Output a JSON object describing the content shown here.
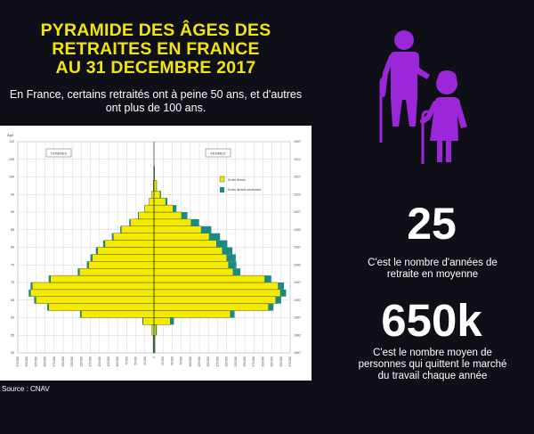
{
  "header": {
    "title_lines": [
      "PYRAMIDE DES ÂGES DES",
      "RETRAITES EN FRANCE",
      "AU 31 DECEMBRE 2017"
    ],
    "subtitle": "En France, certains retraités ont à peine 50 ans, et d'autres ont plus de 100 ans."
  },
  "stats": [
    {
      "value": "25",
      "description": "C'est le nombre d'années de retraite en moyenne"
    },
    {
      "value": "650k",
      "description": "C'est le nombre moyen de personnes qui quittent le marché du travail chaque année"
    }
  ],
  "source": "Source : CNAV",
  "icons": {
    "illustration": "elderly-couple-icon",
    "color": "#9b27d9"
  },
  "chart_data": {
    "type": "bar",
    "orientation": "horizontal-pyramid",
    "ylabel": "Âge",
    "panel_labels": {
      "left": "HOMMES",
      "right": "FEMMES"
    },
    "legend": {
      "placement": "top-right",
      "entries": [
        "Droits directs",
        "Droits dérivés seulement"
      ]
    },
    "colors": {
      "direct": "#f4ec00",
      "derived": "#1c8a84",
      "outline": "#222222"
    },
    "age_ticks": [
      50,
      55,
      60,
      65,
      70,
      75,
      80,
      85,
      90,
      95,
      100,
      105,
      110
    ],
    "year_ticks": [
      1907,
      1912,
      1917,
      1922,
      1927,
      1932,
      1937,
      1942,
      1947,
      1952,
      1957,
      1962,
      1967
    ],
    "x_tick_labels": [
      "375 000",
      "350 000",
      "325 000",
      "300 000",
      "275 000",
      "250 000",
      "225 000",
      "200 000",
      "175 000",
      "150 000",
      "125 000",
      "100 000",
      "75 000",
      "50 000",
      "25 000",
      "0",
      "25 000",
      "50 000",
      "75 000",
      "100 000",
      "125 000",
      "150 000",
      "175 000",
      "200 000",
      "225 000",
      "250 000",
      "275 000",
      "300 000",
      "325 000",
      "350 000",
      "375 000"
    ],
    "xlim": [
      -375000,
      375000
    ],
    "ylim": [
      50,
      110
    ],
    "bands": [
      {
        "age_from": 50,
        "age_to": 55,
        "men_direct": 2000,
        "men_derived": 800,
        "women_direct": 2000,
        "women_derived": 1500
      },
      {
        "age_from": 55,
        "age_to": 58,
        "men_direct": 5000,
        "men_derived": 1000,
        "women_direct": 5000,
        "women_derived": 3000
      },
      {
        "age_from": 58,
        "age_to": 60,
        "men_direct": 30000,
        "men_derived": 2000,
        "women_direct": 45000,
        "women_derived": 10000
      },
      {
        "age_from": 60,
        "age_to": 62,
        "men_direct": 200000,
        "men_derived": 4000,
        "women_direct": 210000,
        "women_derived": 12000
      },
      {
        "age_from": 62,
        "age_to": 64,
        "men_direct": 290000,
        "men_derived": 4000,
        "women_direct": 315000,
        "women_derived": 14000
      },
      {
        "age_from": 64,
        "age_to": 66,
        "men_direct": 325000,
        "men_derived": 5000,
        "women_direct": 335000,
        "women_derived": 15000
      },
      {
        "age_from": 66,
        "age_to": 68,
        "men_direct": 340000,
        "men_derived": 5000,
        "women_direct": 348000,
        "women_derived": 16000
      },
      {
        "age_from": 68,
        "age_to": 70,
        "men_direct": 335000,
        "men_derived": 5000,
        "women_direct": 342000,
        "women_derived": 16000
      },
      {
        "age_from": 70,
        "age_to": 72,
        "men_direct": 285000,
        "men_derived": 5000,
        "women_direct": 305000,
        "women_derived": 18000
      },
      {
        "age_from": 72,
        "age_to": 74,
        "men_direct": 205000,
        "men_derived": 5000,
        "women_direct": 218000,
        "women_derived": 20000
      },
      {
        "age_from": 74,
        "age_to": 76,
        "men_direct": 180000,
        "men_derived": 5000,
        "women_direct": 205000,
        "women_derived": 22000
      },
      {
        "age_from": 76,
        "age_to": 78,
        "men_direct": 170000,
        "men_derived": 5000,
        "women_direct": 200000,
        "women_derived": 25000
      },
      {
        "age_from": 78,
        "age_to": 80,
        "men_direct": 155000,
        "men_derived": 5000,
        "women_direct": 188000,
        "women_derived": 28000
      },
      {
        "age_from": 80,
        "age_to": 82,
        "men_direct": 135000,
        "men_derived": 5000,
        "women_direct": 172000,
        "women_derived": 30000
      },
      {
        "age_from": 82,
        "age_to": 84,
        "men_direct": 112000,
        "men_derived": 4000,
        "women_direct": 152000,
        "women_derived": 30000
      },
      {
        "age_from": 84,
        "age_to": 86,
        "men_direct": 90000,
        "men_derived": 3000,
        "women_direct": 130000,
        "women_derived": 28000
      },
      {
        "age_from": 86,
        "age_to": 88,
        "men_direct": 65000,
        "men_derived": 3000,
        "women_direct": 102000,
        "women_derived": 22000
      },
      {
        "age_from": 88,
        "age_to": 90,
        "men_direct": 42000,
        "men_derived": 2000,
        "women_direct": 76000,
        "women_derived": 16000
      },
      {
        "age_from": 90,
        "age_to": 92,
        "men_direct": 25000,
        "men_derived": 1000,
        "women_direct": 52000,
        "women_derived": 10000
      },
      {
        "age_from": 92,
        "age_to": 94,
        "men_direct": 13000,
        "men_derived": 500,
        "women_direct": 32000,
        "women_derived": 5000
      },
      {
        "age_from": 94,
        "age_to": 96,
        "men_direct": 6000,
        "men_derived": 300,
        "women_direct": 17000,
        "women_derived": 2500
      },
      {
        "age_from": 96,
        "age_to": 99,
        "men_direct": 2000,
        "men_derived": 100,
        "women_direct": 7000,
        "women_derived": 1000
      },
      {
        "age_from": 99,
        "age_to": 103,
        "men_direct": 500,
        "men_derived": 0,
        "women_direct": 2000,
        "women_derived": 300
      }
    ]
  }
}
